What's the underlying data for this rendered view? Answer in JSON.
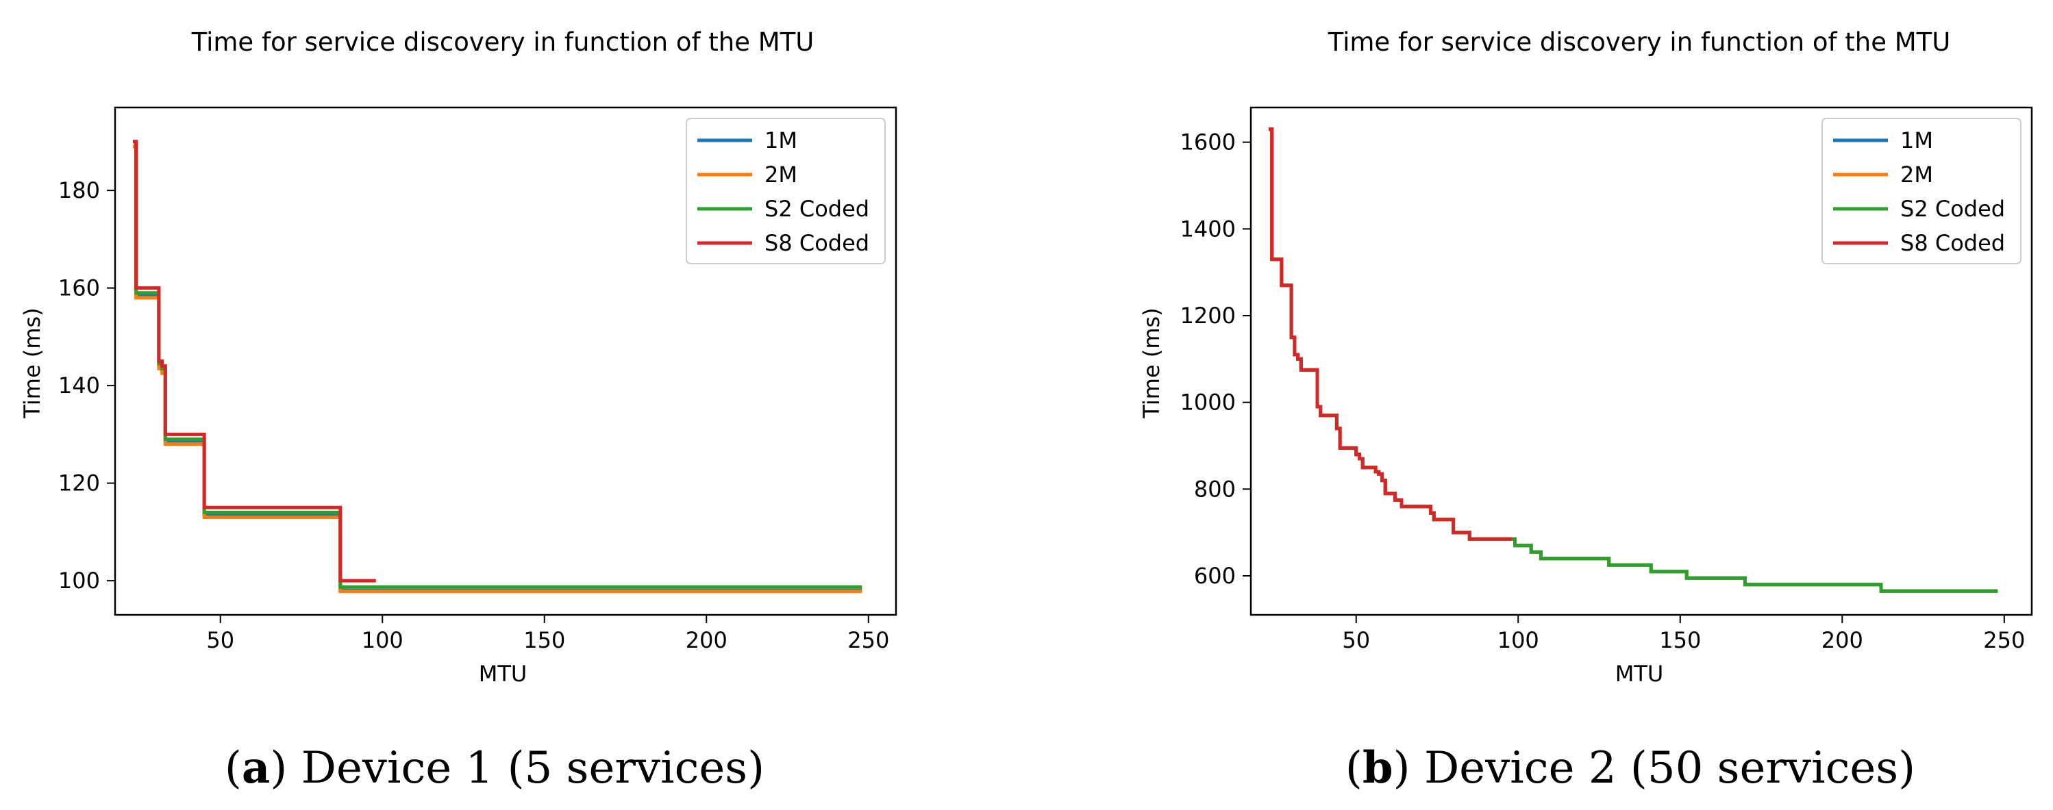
{
  "chart_data": [
    {
      "type": "line",
      "title": "Time for service discovery in function of the MTU",
      "xlabel": "MTU",
      "ylabel": "Time (ms)",
      "xlim": [
        17.5,
        258.5
      ],
      "ylim": [
        93,
        197
      ],
      "xticks": [
        50,
        100,
        150,
        200,
        250
      ],
      "yticks": [
        100,
        120,
        140,
        160,
        180
      ],
      "legend_position": "top-right",
      "caption_letter": "a",
      "caption_text": ") Device 1 (5 services)",
      "caption_open": "(",
      "series": [
        {
          "name": "1M",
          "color": "#1f77b4",
          "x": [
            23,
            24,
            24,
            31,
            31,
            32,
            32,
            33,
            33,
            45,
            45,
            87,
            87,
            248
          ],
          "y": [
            190,
            190,
            158.5,
            158.5,
            144,
            144,
            143,
            143,
            128.5,
            128.5,
            113.5,
            113.5,
            98,
            98
          ]
        },
        {
          "name": "2M",
          "color": "#ff7f0e",
          "x": [
            23,
            24,
            24,
            31,
            31,
            32,
            32,
            33,
            33,
            45,
            45,
            87,
            87,
            248
          ],
          "y": [
            189,
            189,
            158,
            158,
            143.5,
            143.5,
            142.5,
            142.5,
            128,
            128,
            113,
            113,
            97.8,
            97.8
          ]
        },
        {
          "name": "S2 Coded",
          "color": "#2ca02c",
          "x": [
            23,
            24,
            24,
            31,
            31,
            32,
            32,
            33,
            33,
            45,
            45,
            87,
            87,
            248
          ],
          "y": [
            190,
            190,
            159,
            159,
            144.5,
            144.5,
            143.5,
            143.5,
            129,
            129,
            114,
            114,
            98.7,
            98.7
          ]
        },
        {
          "name": "S8 Coded",
          "color": "#d62728",
          "x": [
            23,
            24,
            24,
            31,
            31,
            32,
            32,
            33,
            33,
            45,
            45,
            87,
            87,
            98
          ],
          "y": [
            190,
            190,
            160,
            160,
            145,
            145,
            144,
            144,
            130,
            130,
            115,
            115,
            100,
            100
          ]
        }
      ]
    },
    {
      "type": "line",
      "title": "Time for service discovery in function of the MTU",
      "xlabel": "MTU",
      "ylabel": "Time (ms)",
      "xlim": [
        17.5,
        258.5
      ],
      "ylim": [
        510,
        1680
      ],
      "xticks": [
        50,
        100,
        150,
        200,
        250
      ],
      "yticks": [
        600,
        800,
        1000,
        1200,
        1400,
        1600
      ],
      "legend_position": "top-right",
      "caption_letter": "b",
      "caption_text": ") Device 2 (50 services)",
      "caption_open": "(",
      "series": [
        {
          "name": "1M",
          "color": "#1f77b4",
          "x": [
            23,
            24,
            24,
            26,
            26,
            27,
            27,
            30,
            30,
            31,
            31,
            32,
            32,
            33,
            33,
            38,
            38,
            39,
            39,
            44,
            44,
            45,
            45,
            50,
            50,
            51,
            51,
            52,
            52,
            56,
            56,
            57,
            57,
            58,
            58,
            59,
            59,
            62,
            62,
            64,
            64,
            66,
            66,
            73,
            73,
            74,
            74,
            80,
            80,
            85,
            85,
            99,
            99,
            104,
            104,
            107,
            107,
            128,
            128,
            141,
            141,
            152,
            152,
            170,
            170,
            212,
            212,
            248
          ],
          "y": [
            1630,
            1630,
            1330,
            1330,
            1330,
            1330,
            1270,
            1270,
            1150,
            1150,
            1110,
            1110,
            1100,
            1100,
            1075,
            1075,
            990,
            990,
            970,
            970,
            940,
            940,
            895,
            895,
            880,
            880,
            870,
            870,
            850,
            850,
            840,
            840,
            835,
            835,
            820,
            820,
            790,
            790,
            775,
            775,
            760,
            760,
            760,
            760,
            745,
            745,
            730,
            730,
            700,
            700,
            685,
            685,
            670,
            670,
            655,
            655,
            640,
            640,
            625,
            625,
            610,
            610,
            595,
            595,
            580,
            580,
            565,
            565
          ]
        },
        {
          "name": "2M",
          "color": "#ff7f0e",
          "x": [
            23,
            24,
            24,
            26,
            26,
            27,
            27,
            30,
            30,
            31,
            31,
            32,
            32,
            33,
            33,
            38,
            38,
            39,
            39,
            44,
            44,
            45,
            45,
            50,
            50,
            51,
            51,
            52,
            52,
            56,
            56,
            57,
            57,
            58,
            58,
            59,
            59,
            62,
            62,
            64,
            64,
            66,
            66,
            73,
            73,
            74,
            74,
            80,
            80,
            85,
            85,
            99,
            99,
            104,
            104,
            107,
            107,
            128,
            128,
            141,
            141,
            152,
            152,
            170,
            170,
            212,
            212,
            248
          ],
          "y": [
            1630,
            1630,
            1330,
            1330,
            1330,
            1330,
            1270,
            1270,
            1150,
            1150,
            1110,
            1110,
            1100,
            1100,
            1075,
            1075,
            990,
            990,
            970,
            970,
            940,
            940,
            895,
            895,
            880,
            880,
            870,
            870,
            850,
            850,
            840,
            840,
            835,
            835,
            820,
            820,
            790,
            790,
            775,
            775,
            760,
            760,
            760,
            760,
            745,
            745,
            730,
            730,
            700,
            700,
            685,
            685,
            670,
            670,
            655,
            655,
            640,
            640,
            625,
            625,
            610,
            610,
            595,
            595,
            580,
            580,
            565,
            565
          ]
        },
        {
          "name": "S2 Coded",
          "color": "#2ca02c",
          "x": [
            23,
            24,
            24,
            26,
            26,
            27,
            27,
            30,
            30,
            31,
            31,
            32,
            32,
            33,
            33,
            38,
            38,
            39,
            39,
            44,
            44,
            45,
            45,
            50,
            50,
            51,
            51,
            52,
            52,
            56,
            56,
            57,
            57,
            58,
            58,
            59,
            59,
            62,
            62,
            64,
            64,
            66,
            66,
            73,
            73,
            74,
            74,
            80,
            80,
            85,
            85,
            99,
            99,
            104,
            104,
            107,
            107,
            128,
            128,
            141,
            141,
            152,
            152,
            170,
            170,
            212,
            212,
            248
          ],
          "y": [
            1630,
            1630,
            1330,
            1330,
            1330,
            1330,
            1270,
            1270,
            1150,
            1150,
            1110,
            1110,
            1100,
            1100,
            1075,
            1075,
            990,
            990,
            970,
            970,
            940,
            940,
            895,
            895,
            880,
            880,
            870,
            870,
            850,
            850,
            840,
            840,
            835,
            835,
            820,
            820,
            790,
            790,
            775,
            775,
            760,
            760,
            760,
            760,
            745,
            745,
            730,
            730,
            700,
            700,
            685,
            685,
            670,
            670,
            655,
            655,
            640,
            640,
            625,
            625,
            610,
            610,
            595,
            595,
            580,
            580,
            565,
            565
          ]
        },
        {
          "name": "S8 Coded",
          "color": "#d62728",
          "x": [
            23,
            24,
            24,
            26,
            26,
            27,
            27,
            30,
            30,
            31,
            31,
            32,
            32,
            33,
            33,
            38,
            38,
            39,
            39,
            44,
            44,
            45,
            45,
            50,
            50,
            51,
            51,
            52,
            52,
            56,
            56,
            57,
            57,
            58,
            58,
            59,
            59,
            62,
            62,
            64,
            64,
            66,
            66,
            73,
            73,
            74,
            74,
            80,
            80,
            85,
            85,
            98
          ],
          "y": [
            1630,
            1630,
            1330,
            1330,
            1330,
            1330,
            1270,
            1270,
            1150,
            1150,
            1110,
            1110,
            1100,
            1100,
            1075,
            1075,
            990,
            990,
            970,
            970,
            940,
            940,
            895,
            895,
            880,
            880,
            870,
            870,
            850,
            850,
            840,
            840,
            835,
            835,
            820,
            820,
            790,
            790,
            775,
            775,
            760,
            760,
            760,
            760,
            745,
            745,
            730,
            730,
            700,
            700,
            685,
            685
          ]
        }
      ]
    }
  ]
}
